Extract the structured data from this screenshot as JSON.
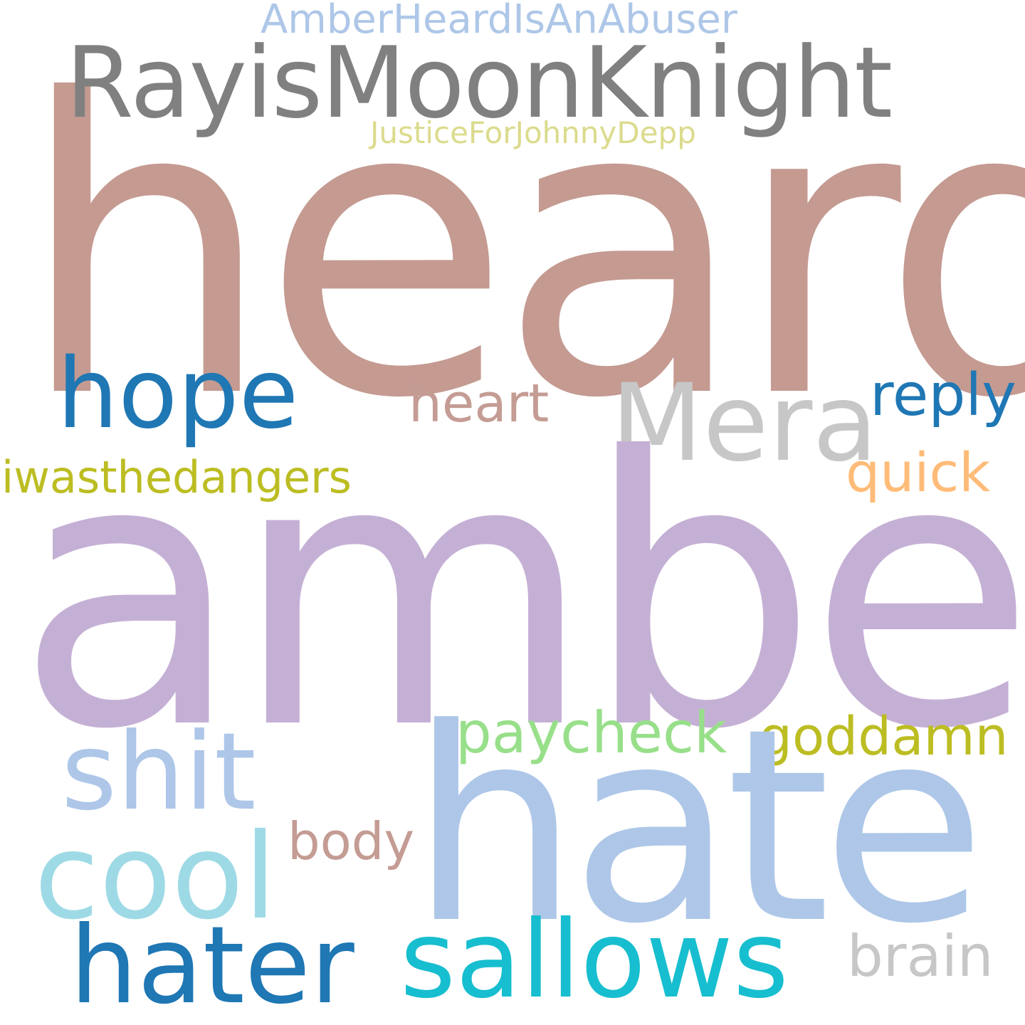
{
  "words": {
    "heard": {
      "text": "heard",
      "color": "#c49a91"
    },
    "rayis": {
      "text": "RayisMoonKnight",
      "color": "#808080"
    },
    "amberheard": {
      "text": "AmberHeardIsAnAbuser",
      "color": "#aec7e8"
    },
    "justice": {
      "text": "JusticeForJohnnyDepp",
      "color": "#dbdb8d"
    },
    "hope": {
      "text": "hope",
      "color": "#1f77b4"
    },
    "mera": {
      "text": "Mera",
      "color": "#c7c7c7"
    },
    "heart": {
      "text": "heart",
      "color": "#c49c94"
    },
    "reply": {
      "text": "reply",
      "color": "#1f77b4"
    },
    "iwas": {
      "text": "iwasthedangers",
      "color": "#bcbd22"
    },
    "quick": {
      "text": "quick",
      "color": "#ffbb78"
    },
    "amber": {
      "text": "amber",
      "color": "#c5b0d5"
    },
    "paycheck": {
      "text": "paycheck",
      "color": "#98df8a"
    },
    "goddamn": {
      "text": "goddamn",
      "color": "#bcbd22"
    },
    "shit": {
      "text": "shit",
      "color": "#aec7e8"
    },
    "hate": {
      "text": "hate",
      "color": "#aec7e8"
    },
    "cool": {
      "text": "cool",
      "color": "#9edae5"
    },
    "body": {
      "text": "body",
      "color": "#c49c94"
    },
    "hater": {
      "text": "hater",
      "color": "#1f77b4"
    },
    "sallows": {
      "text": "sallows",
      "color": "#17becf"
    },
    "brain": {
      "text": "brain",
      "color": "#c7c7c7"
    }
  }
}
